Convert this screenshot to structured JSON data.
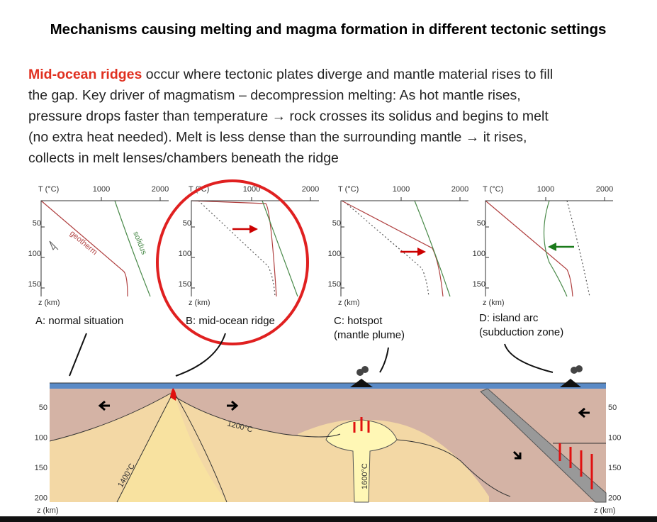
{
  "title": "Mechanisms causing melting and magma formation in different tectonic settings",
  "paragraph": {
    "highlight": "Mid-ocean ridges",
    "lines": [
      " occur where tectonic plates diverge and mantle material rises to fill",
      "the gap. Key driver of magmatism – decompression melting: As hot mantle rises,",
      "pressure drops faster than temperature → rock crosses its solidus and begins to melt",
      "(no extra heat needed). Melt is less dense than the surrounding mantle → it rises,",
      "collects in melt lenses/chambers beneath the ridge"
    ]
  },
  "panels": [
    {
      "axis_title": "T (°C)",
      "ticks": [
        "1000",
        "2000"
      ],
      "depth_ticks": [
        "50",
        "100",
        "150"
      ],
      "depth_label": "z (km)",
      "caption": [
        "A: normal situation"
      ],
      "geotherm_label": "geotherm",
      "solidus_label": "solidus"
    },
    {
      "axis_title": "T (°C)",
      "ticks": [
        "1000",
        "2000"
      ],
      "depth_ticks": [
        "50",
        "100",
        "150"
      ],
      "depth_label": "z (km)",
      "caption": [
        "B: mid-ocean ridge"
      ]
    },
    {
      "axis_title": "T (°C)",
      "ticks": [
        "1000",
        "2000"
      ],
      "depth_ticks": [
        "50",
        "100",
        "150"
      ],
      "depth_label": "z (km)",
      "caption": [
        "C: hotspot",
        "(mantle plume)"
      ]
    },
    {
      "axis_title": "T (°C)",
      "ticks": [
        "1000",
        "2000"
      ],
      "depth_ticks": [
        "50",
        "100",
        "150"
      ],
      "depth_label": "z (km)",
      "caption": [
        "D: island arc",
        "(subduction zone)"
      ]
    }
  ],
  "cross_section": {
    "depth_ticks": [
      "50",
      "100",
      "150",
      "200"
    ],
    "depth_label": "z (km)",
    "isotherms": [
      "1200°C",
      "1400°C",
      "1600°C"
    ]
  }
}
